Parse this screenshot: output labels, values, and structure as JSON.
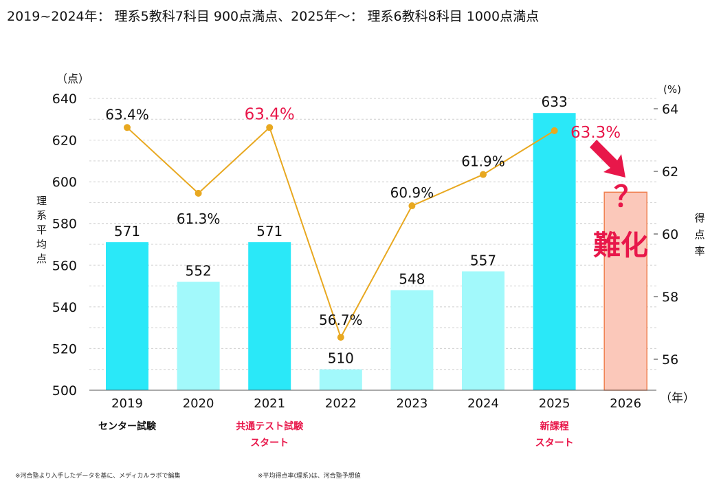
{
  "chart_data": {
    "type": "bar+line",
    "title": "2019~2024年： 理系5教科7科目 900点満点、2025年～： 理系6教科8科目 1000点満点",
    "categories": [
      "2019",
      "2020",
      "2021",
      "2022",
      "2023",
      "2024",
      "2025",
      "2026"
    ],
    "x_unit": "（年）",
    "bar_series": {
      "name": "理系平均点",
      "values": [
        571,
        552,
        571,
        510,
        548,
        557,
        633,
        595
      ],
      "labels": [
        "571",
        "552",
        "571",
        "510",
        "548",
        "557",
        "633",
        ""
      ]
    },
    "line_series": {
      "name": "得点率",
      "values": [
        63.4,
        61.3,
        63.4,
        56.7,
        60.9,
        61.9,
        63.3
      ],
      "labels": [
        "63.4%",
        "61.3%",
        "63.4%",
        "56.7%",
        "60.9%",
        "61.9%",
        "63.3%"
      ],
      "highlight": [
        false,
        false,
        true,
        false,
        false,
        false,
        true
      ]
    },
    "left_axis": {
      "label": "理系平均点",
      "unit": "（点）",
      "ylim": [
        500,
        640
      ],
      "ticks": [
        "500",
        "520",
        "540",
        "560",
        "580",
        "600",
        "620",
        "640"
      ]
    },
    "right_axis": {
      "label": "得点率",
      "unit": "(%)",
      "ylim": [
        55,
        64.6
      ],
      "ticks": [
        "56",
        "58",
        "60",
        "62",
        "64"
      ]
    },
    "grid": true,
    "annotations": {
      "question": "？",
      "harder": "難化"
    },
    "category_notes": [
      {
        "index": 0,
        "lines": [
          "センター試験"
        ],
        "color": "#111111"
      },
      {
        "index": 2,
        "lines": [
          "共通テスト試験",
          "スタート"
        ],
        "color": "#e8174a"
      },
      {
        "index": 6,
        "lines": [
          "新課程",
          "スタート"
        ],
        "color": "#e8174a"
      }
    ],
    "footnotes": [
      "※河合塾より入手したデータを基に、メディカルラボで編集",
      "※平均得点率(理系)は、河合塾予想値"
    ],
    "colors": {
      "bar_strong": "#2ae8f8",
      "bar_light": "#a2f9fb",
      "bar_estimate": "#fbc8ba",
      "bar_estimate_border": "#f08050",
      "line": "#e8a820",
      "accent": "#e8174a"
    }
  }
}
